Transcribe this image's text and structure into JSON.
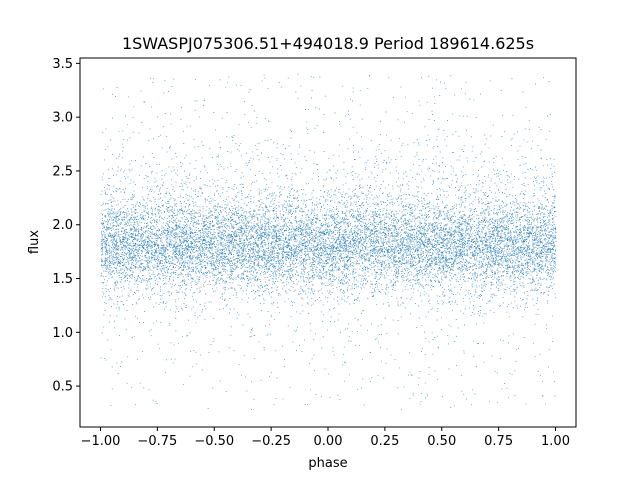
{
  "chart_data": {
    "type": "scatter",
    "title": "1SWASPJ075306.51+494018.9 Period 189614.625s",
    "xlabel": "phase",
    "ylabel": "flux",
    "xlim": [
      -1.09,
      1.09
    ],
    "ylim": [
      0.12,
      3.55
    ],
    "xticks": [
      -1.0,
      -0.75,
      -0.5,
      -0.25,
      0.0,
      0.25,
      0.5,
      0.75,
      1.0
    ],
    "xtick_labels": [
      "−1.00",
      "−0.75",
      "−0.50",
      "−0.25",
      "0.00",
      "0.25",
      "0.50",
      "0.75",
      "1.00"
    ],
    "yticks": [
      0.5,
      1.0,
      1.5,
      2.0,
      2.5,
      3.0,
      3.5
    ],
    "ytick_labels": [
      "0.5",
      "1.0",
      "1.5",
      "2.0",
      "2.5",
      "3.0",
      "3.5"
    ],
    "grid": false,
    "marker_color": "#1f77b4",
    "series": [
      {
        "phase_range": [
          -1.0,
          1.0
        ],
        "flux_center": 1.8,
        "flux_core_range": [
          1.45,
          2.2
        ],
        "flux_extent": [
          0.28,
          3.4
        ]
      }
    ]
  }
}
